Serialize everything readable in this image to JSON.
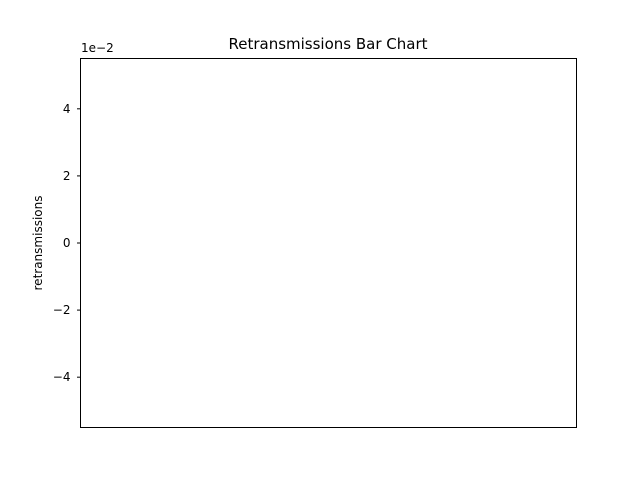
{
  "chart_data": {
    "type": "bar",
    "title": "Retransmissions Bar Chart",
    "xlabel": "",
    "ylabel": "retransmissions",
    "y_offset_label": "1e−2",
    "y_scale_factor": 0.01,
    "ylim": [
      -0.055,
      0.055
    ],
    "yticks": [
      {
        "value": 0.04,
        "label": "4"
      },
      {
        "value": 0.02,
        "label": "2"
      },
      {
        "value": 0.0,
        "label": "0"
      },
      {
        "value": -0.02,
        "label": "−2"
      },
      {
        "value": -0.04,
        "label": "−4"
      }
    ],
    "categories": [],
    "values": [],
    "grid": false,
    "legend": "none"
  }
}
